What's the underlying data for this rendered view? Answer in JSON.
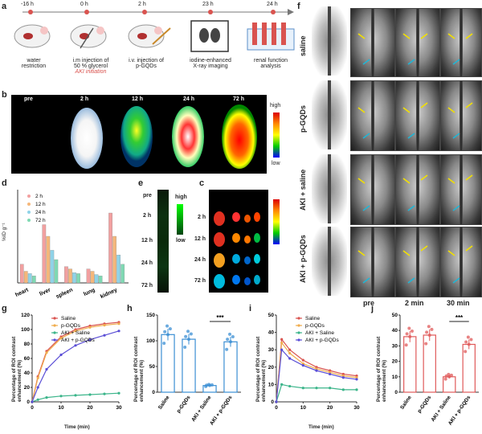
{
  "panel_labels": {
    "a": "a",
    "b": "b",
    "c": "c",
    "d": "d",
    "e": "e",
    "f": "f",
    "g": "g",
    "h": "h",
    "i": "i",
    "j": "j"
  },
  "timeline": {
    "times": [
      "-16 h",
      "0 h",
      "2 h",
      "23 h",
      "24 h"
    ],
    "steps": [
      {
        "line1": "water",
        "line2": "restriction"
      },
      {
        "line1": "i.m injection of",
        "line2": "50 % glycerol",
        "line3": "AKI initiation"
      },
      {
        "line1": "i.v. injection of",
        "line2": "p-GQDs"
      },
      {
        "line1": "iodine-enhanced",
        "line2": "X-ray imaging"
      },
      {
        "line1": "renal function",
        "line2": "analysis"
      }
    ]
  },
  "panel_b": {
    "times": [
      "pre",
      "2 h",
      "12 h",
      "24 h",
      "72 h"
    ],
    "scale_high": "high",
    "scale_low": "low"
  },
  "panel_d": {
    "chart_data": {
      "type": "bar",
      "ylabel": "%ID g⁻¹",
      "categories": [
        "heart",
        "liver",
        "spleen",
        "lung",
        "kidney"
      ],
      "series": [
        {
          "name": "2 h",
          "color": "#f2a0a0",
          "values": [
            4.0,
            12.5,
            3.5,
            3.0,
            15.0
          ]
        },
        {
          "name": "12 h",
          "color": "#f5b77a",
          "values": [
            2.5,
            10.0,
            3.0,
            2.5,
            10.0
          ]
        },
        {
          "name": "24 h",
          "color": "#8fd3e8",
          "values": [
            2.0,
            7.0,
            2.2,
            1.8,
            6.0
          ]
        },
        {
          "name": "72 h",
          "color": "#7fd9b3",
          "values": [
            1.5,
            5.0,
            2.0,
            1.5,
            4.0
          ]
        }
      ],
      "ylim": [
        0,
        20
      ]
    }
  },
  "panel_e": {
    "times": [
      "pre",
      "2 h",
      "12 h",
      "24 h",
      "72 h"
    ],
    "scale_high": "high",
    "scale_low": "low"
  },
  "panel_c": {
    "times": [
      "2 h",
      "12 h",
      "24 h",
      "72 h"
    ]
  },
  "panel_f": {
    "rows": [
      "saline",
      "p-GQDs",
      "AKI + saline",
      "AKI + p-GQDs"
    ],
    "cols": [
      "pre",
      "2 min",
      "30 min"
    ]
  },
  "panel_g": {
    "chart_data": {
      "type": "line",
      "xlabel": "Time (min)",
      "ylabel": "Percentage of ROI contrast enhancement (%)",
      "x": [
        0,
        2,
        5,
        10,
        15,
        20,
        25,
        30
      ],
      "xticks": [
        0,
        10,
        20,
        30
      ],
      "yticks": [
        0,
        20,
        40,
        60,
        80,
        100,
        120
      ],
      "ylim": [
        0,
        120
      ],
      "series": [
        {
          "name": "Saline",
          "color": "#d9534f",
          "values": [
            0,
            35,
            70,
            90,
            100,
            105,
            108,
            110
          ]
        },
        {
          "name": "p-GQDs",
          "color": "#f0ad4e",
          "values": [
            0,
            33,
            68,
            88,
            98,
            103,
            106,
            108
          ]
        },
        {
          "name": "AKI + Saline",
          "color": "#3bb58a",
          "values": [
            0,
            3,
            6,
            8,
            9,
            10,
            11,
            12
          ]
        },
        {
          "name": "AKI + p-GQDs",
          "color": "#5b4fd6",
          "values": [
            0,
            20,
            45,
            65,
            78,
            86,
            92,
            98
          ]
        }
      ]
    }
  },
  "panel_h": {
    "chart_data": {
      "type": "bar",
      "ylabel": "Percentage of ROI contrast enhancement (%)",
      "categories": [
        "Saline",
        "p-GQDs",
        "AKI + Saline",
        "AKI + p-GQDs"
      ],
      "values": [
        112,
        103,
        13,
        98
      ],
      "colors": [
        "#3b8fd4",
        "#3b8fd4",
        "#3b8fd4",
        "#3b8fd4"
      ],
      "yticks": [
        0,
        50,
        100,
        150
      ],
      "ylim": [
        0,
        150
      ],
      "significance": "***"
    }
  },
  "panel_i": {
    "chart_data": {
      "type": "line",
      "xlabel": "Time (min)",
      "ylabel": "Percentage of ROI contrast enhancement (%)",
      "x": [
        0,
        2,
        5,
        10,
        15,
        20,
        25,
        30
      ],
      "xticks": [
        0,
        10,
        20,
        30
      ],
      "yticks": [
        0,
        10,
        20,
        30,
        40,
        50
      ],
      "ylim": [
        0,
        50
      ],
      "series": [
        {
          "name": "Saline",
          "color": "#d9534f",
          "values": [
            0,
            36,
            30,
            24,
            20,
            18,
            16,
            15
          ]
        },
        {
          "name": "p-GQDs",
          "color": "#f0ad4e",
          "values": [
            0,
            34,
            28,
            22,
            19,
            17,
            15,
            14
          ]
        },
        {
          "name": "AKI + Saline",
          "color": "#3bb58a",
          "values": [
            0,
            10,
            9,
            8,
            8,
            8,
            7,
            7
          ]
        },
        {
          "name": "AKI + p-GQDs",
          "color": "#5b4fd6",
          "values": [
            0,
            30,
            25,
            21,
            18,
            16,
            14,
            13
          ]
        }
      ]
    }
  },
  "panel_j": {
    "chart_data": {
      "type": "bar",
      "ylabel": "Percentage of ROI contrast enhancement (%)",
      "categories": [
        "Saline",
        "p-GQDs",
        "AKI + Saline",
        "AKI + p-GQDs"
      ],
      "values": [
        36,
        37,
        10,
        31
      ],
      "colors": [
        "#e05a5a",
        "#e05a5a",
        "#e05a5a",
        "#e05a5a"
      ],
      "yticks": [
        0,
        10,
        20,
        30,
        40,
        50
      ],
      "ylim": [
        0,
        50
      ],
      "significance": "***"
    }
  }
}
